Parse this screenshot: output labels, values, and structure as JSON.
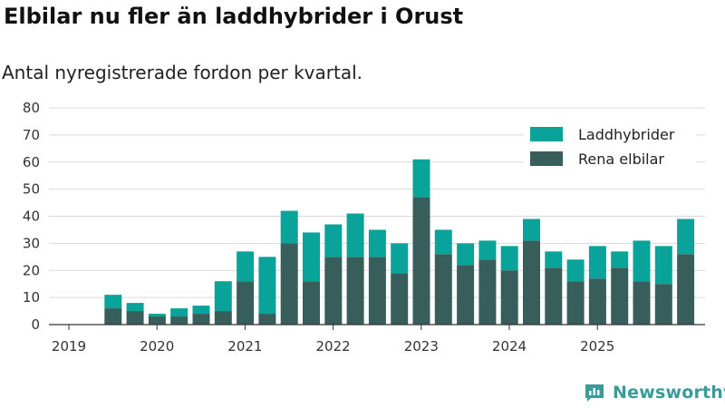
{
  "title": "Elbilar nu fler än laddhybrider i Orust",
  "subtitle": "Antal nyregistrerade fordon per kvartal.",
  "brand": "Newsworthy",
  "colors": {
    "laddhybrider": "#0aa39a",
    "elbilar": "#375e5a",
    "grid": "#d9d9d9",
    "axis": "#333333",
    "brand": "#3a9b9b"
  },
  "chart_data": {
    "type": "bar",
    "stacked": true,
    "title": "Elbilar nu fler än laddhybrider i Orust",
    "subtitle": "Antal nyregistrerade fordon per kvartal.",
    "xlabel": "",
    "ylabel": "",
    "ylim": [
      0,
      80
    ],
    "yticks": [
      0,
      10,
      20,
      30,
      40,
      50,
      60,
      70,
      80
    ],
    "year_labels": [
      "2019",
      "2020",
      "2021",
      "2022",
      "2023",
      "2024",
      "2025"
    ],
    "legend_position": "top-right",
    "categories": [
      "2019 Q1",
      "2019 Q2",
      "2019 Q3",
      "2019 Q4",
      "2020 Q1",
      "2020 Q2",
      "2020 Q3",
      "2020 Q4",
      "2021 Q1",
      "2021 Q2",
      "2021 Q3",
      "2021 Q4",
      "2022 Q1",
      "2022 Q2",
      "2022 Q3",
      "2022 Q4",
      "2023 Q1",
      "2023 Q2",
      "2023 Q3",
      "2023 Q4",
      "2024 Q1",
      "2024 Q2",
      "2024 Q3",
      "2024 Q4",
      "2025 Q1",
      "2025 Q2",
      "2025 Q3",
      "2025 Q4"
    ],
    "series": [
      {
        "name": "Rena elbilar",
        "color": "#375e5a",
        "values": [
          0,
          6,
          5,
          3,
          3,
          4,
          5,
          16,
          4,
          30,
          16,
          25,
          25,
          25,
          19,
          47,
          26,
          22,
          24,
          20,
          31,
          21,
          16,
          17,
          21,
          16,
          15,
          26
        ]
      },
      {
        "name": "Laddhybrider",
        "color": "#0aa39a",
        "values": [
          0,
          5,
          3,
          1,
          3,
          3,
          11,
          11,
          21,
          12,
          18,
          12,
          16,
          10,
          11,
          14,
          9,
          8,
          7,
          9,
          8,
          6,
          8,
          12,
          6,
          15,
          14,
          13
        ]
      }
    ],
    "legend": [
      "Laddhybrider",
      "Rena elbilar"
    ]
  }
}
